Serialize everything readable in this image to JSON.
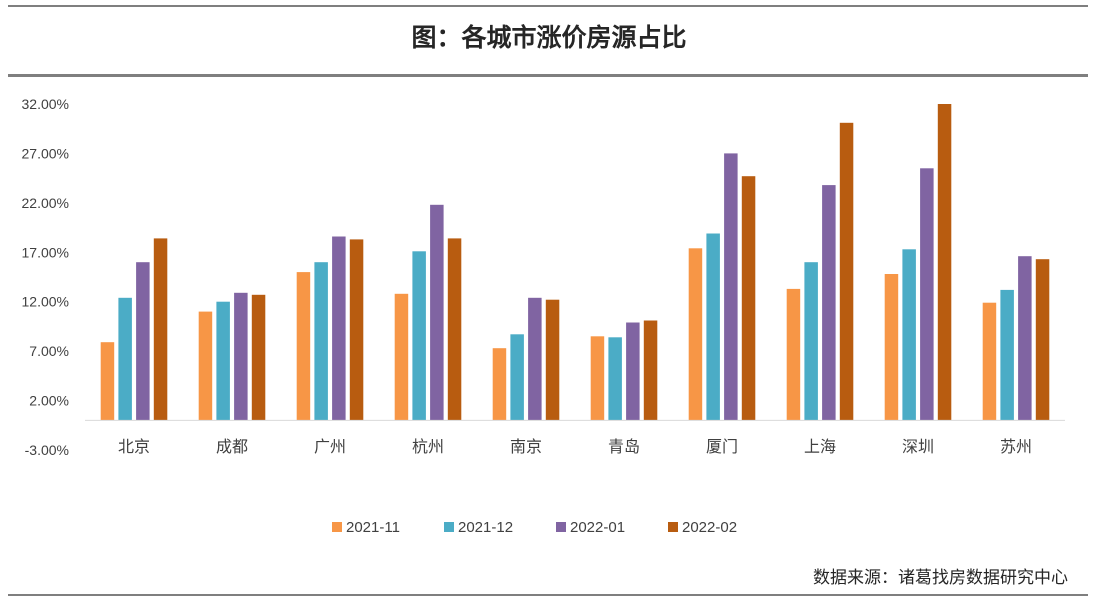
{
  "title": "图：各城市涨价房源占比",
  "source": "数据来源：诸葛找房数据研究中心",
  "chart_data": {
    "type": "bar",
    "title": "图：各城市涨价房源占比",
    "categories": [
      "北京",
      "成都",
      "广州",
      "杭州",
      "南京",
      "青岛",
      "厦门",
      "上海",
      "深圳",
      "苏州"
    ],
    "y_ticks": [
      "32.00%",
      "27.00%",
      "22.00%",
      "17.00%",
      "12.00%",
      "7.00%",
      "2.00%",
      "-3.00%"
    ],
    "ylim": [
      -3,
      32
    ],
    "baseline": 0,
    "grid": false,
    "legend_position": "bottom",
    "series": [
      {
        "name": "2021-11",
        "color": "#F79646",
        "values": [
          7.9,
          11.0,
          15.0,
          12.8,
          7.3,
          8.5,
          17.4,
          13.3,
          14.8,
          11.9
        ]
      },
      {
        "name": "2021-12",
        "color": "#4BACC6",
        "values": [
          12.4,
          12.0,
          16.0,
          17.1,
          8.7,
          8.4,
          18.9,
          16.0,
          17.3,
          13.2
        ]
      },
      {
        "name": "2022-01",
        "color": "#8064A2",
        "values": [
          16.0,
          12.9,
          18.6,
          21.8,
          12.4,
          9.9,
          27.0,
          23.8,
          25.5,
          16.6
        ]
      },
      {
        "name": "2022-02",
        "color": "#B85C10",
        "values": [
          18.4,
          12.7,
          18.3,
          18.4,
          12.2,
          10.1,
          24.7,
          30.1,
          32.0,
          16.3
        ]
      }
    ]
  }
}
